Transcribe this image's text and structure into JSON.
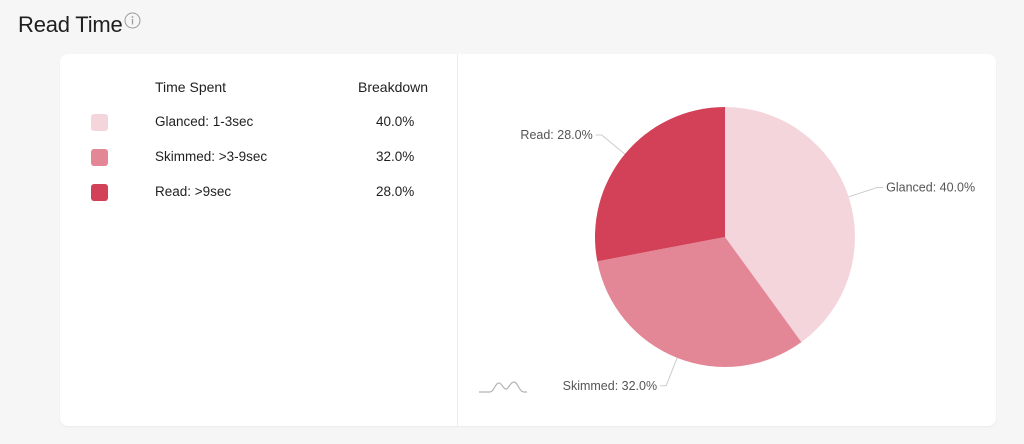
{
  "header": {
    "title": "Read Time",
    "info_icon": "info-icon"
  },
  "table": {
    "col_time": "Time Spent",
    "col_breakdown": "Breakdown"
  },
  "colors": {
    "glanced": "#f5d5dc",
    "skimmed": "#e38796",
    "read": "#d24157"
  },
  "chart_data": {
    "type": "pie",
    "slices": [
      {
        "label": "Glanced: 1-3sec",
        "pie_label": "Glanced: 40.0%",
        "value": 40.0,
        "display": "40.0%",
        "color": "#f5d5dc"
      },
      {
        "label": "Skimmed: >3-9sec",
        "pie_label": "Skimmed: 32.0%",
        "value": 32.0,
        "display": "32.0%",
        "color": "#e38796"
      },
      {
        "label": "Read: >9sec",
        "pie_label": "Read: 28.0%",
        "value": 28.0,
        "display": "28.0%",
        "color": "#d24157"
      }
    ],
    "start_angle_deg": 0,
    "direction": "clockwise"
  },
  "footer": {
    "sparkline_icon": "sparkline-icon"
  }
}
